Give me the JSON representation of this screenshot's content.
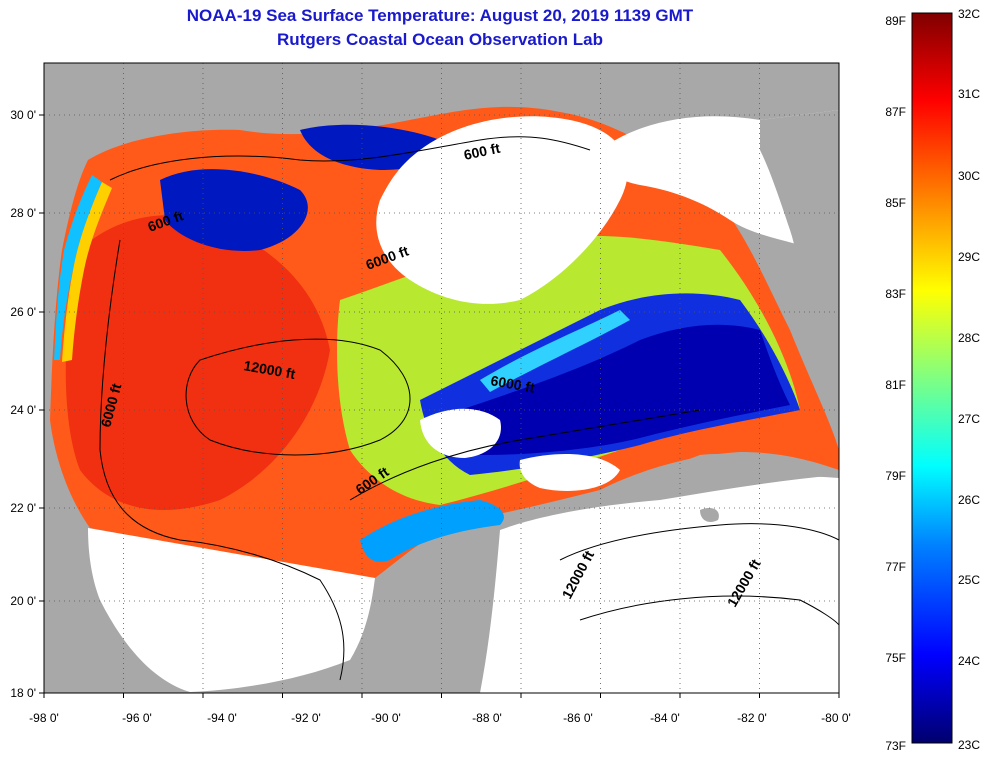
{
  "title": "NOAA-19 Sea Surface Temperature:  August 20, 2019 1139 GMT",
  "subtitle": "Rutgers Coastal Ocean Observation Lab",
  "lon_ticks": [
    "-98 0'",
    "-96 0'",
    "-94 0'",
    "-92 0'",
    "-90 0'",
    "-88 0'",
    "-86 0'",
    "-84 0'",
    "-82 0'",
    "-80 0'"
  ],
  "lat_ticks": [
    "30 0'",
    "28 0'",
    "26 0'",
    "24 0'",
    "22 0'",
    "20 0'",
    "18 0'"
  ],
  "colorbar": {
    "fahrenheit": [
      "89F",
      "87F",
      "85F",
      "83F",
      "81F",
      "79F",
      "77F",
      "75F",
      "73F"
    ],
    "celsius": [
      "32C",
      "31C",
      "30C",
      "29C",
      "28C",
      "27C",
      "26C",
      "25C",
      "24C",
      "23C"
    ],
    "stops": [
      "#00006e",
      "#0000ff",
      "#0080ff",
      "#00ffff",
      "#80ff80",
      "#ffff00",
      "#ff8000",
      "#ff0000",
      "#800000"
    ]
  },
  "isobaths": [
    "600 ft",
    "6000 ft",
    "12000 ft",
    "6000 ft",
    "6000 ft",
    "600 ft",
    "600 ft",
    "12000 ft",
    "12000 ft"
  ],
  "colors": {
    "land": "#a8a8a8",
    "cloud": "#ffffff",
    "title": "#1a1acc"
  }
}
